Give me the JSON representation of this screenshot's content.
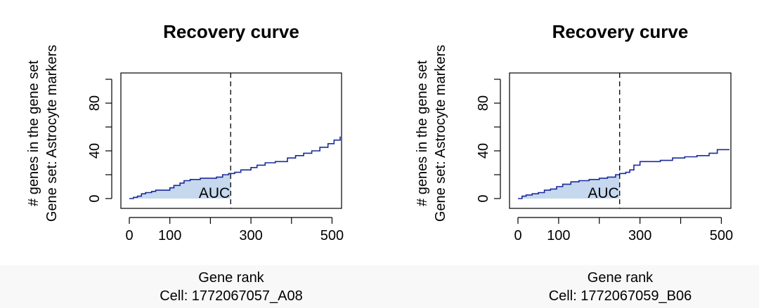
{
  "chart_data": [
    {
      "type": "line",
      "title": "Recovery curve",
      "xlabel": "Gene rank",
      "subtitle": "Cell: 1772067057_A08",
      "ylabel": "# genes in the gene set",
      "ylabel2": "Gene set: Astrocyte markers",
      "xlim": [
        0,
        520
      ],
      "ylim": [
        0,
        100
      ],
      "x_ticks": [
        0,
        100,
        200,
        300,
        400,
        500
      ],
      "x_tick_labels": [
        "0",
        "100",
        "",
        "300",
        "",
        "500"
      ],
      "y_ticks": [
        0,
        20,
        40,
        60,
        80,
        100
      ],
      "y_tick_labels": [
        "0",
        "",
        "40",
        "",
        "80",
        ""
      ],
      "auc_threshold": 250,
      "auc_label": "AUC",
      "line_color": "#1a2a9c",
      "fill_color": "#c5d8ee",
      "x": [
        0,
        10,
        20,
        30,
        40,
        55,
        65,
        80,
        100,
        110,
        125,
        135,
        150,
        175,
        200,
        215,
        230,
        245,
        260,
        275,
        300,
        315,
        335,
        360,
        390,
        410,
        430,
        450,
        470,
        490,
        505,
        520
      ],
      "y": [
        0,
        1,
        2,
        4,
        5,
        6,
        7,
        7,
        9,
        11,
        13,
        15,
        16,
        17,
        17,
        18,
        20,
        21,
        22,
        24,
        26,
        28,
        30,
        31,
        34,
        36,
        38,
        40,
        43,
        46,
        49,
        52
      ]
    },
    {
      "type": "line",
      "title": "Recovery curve",
      "xlabel": "Gene rank",
      "subtitle": "Cell: 1772067059_B06",
      "ylabel": "# genes in the gene set",
      "ylabel2": "Gene set: Astrocyte markers",
      "xlim": [
        0,
        520
      ],
      "ylim": [
        0,
        100
      ],
      "x_ticks": [
        0,
        100,
        200,
        300,
        400,
        500
      ],
      "x_tick_labels": [
        "0",
        "100",
        "",
        "300",
        "",
        "500"
      ],
      "y_ticks": [
        0,
        20,
        40,
        60,
        80,
        100
      ],
      "y_tick_labels": [
        "0",
        "",
        "40",
        "",
        "80",
        ""
      ],
      "auc_threshold": 250,
      "auc_label": "AUC",
      "line_color": "#1a2a9c",
      "fill_color": "#c5d8ee",
      "x": [
        0,
        10,
        20,
        35,
        50,
        65,
        80,
        95,
        110,
        130,
        150,
        175,
        200,
        220,
        240,
        250,
        265,
        275,
        285,
        300,
        320,
        350,
        380,
        410,
        440,
        470,
        490,
        520
      ],
      "y": [
        0,
        2,
        3,
        4,
        5,
        7,
        8,
        10,
        12,
        14,
        15,
        16,
        17,
        18,
        20,
        21,
        22,
        24,
        28,
        31,
        31,
        32,
        34,
        35,
        36,
        38,
        41,
        41
      ]
    }
  ]
}
